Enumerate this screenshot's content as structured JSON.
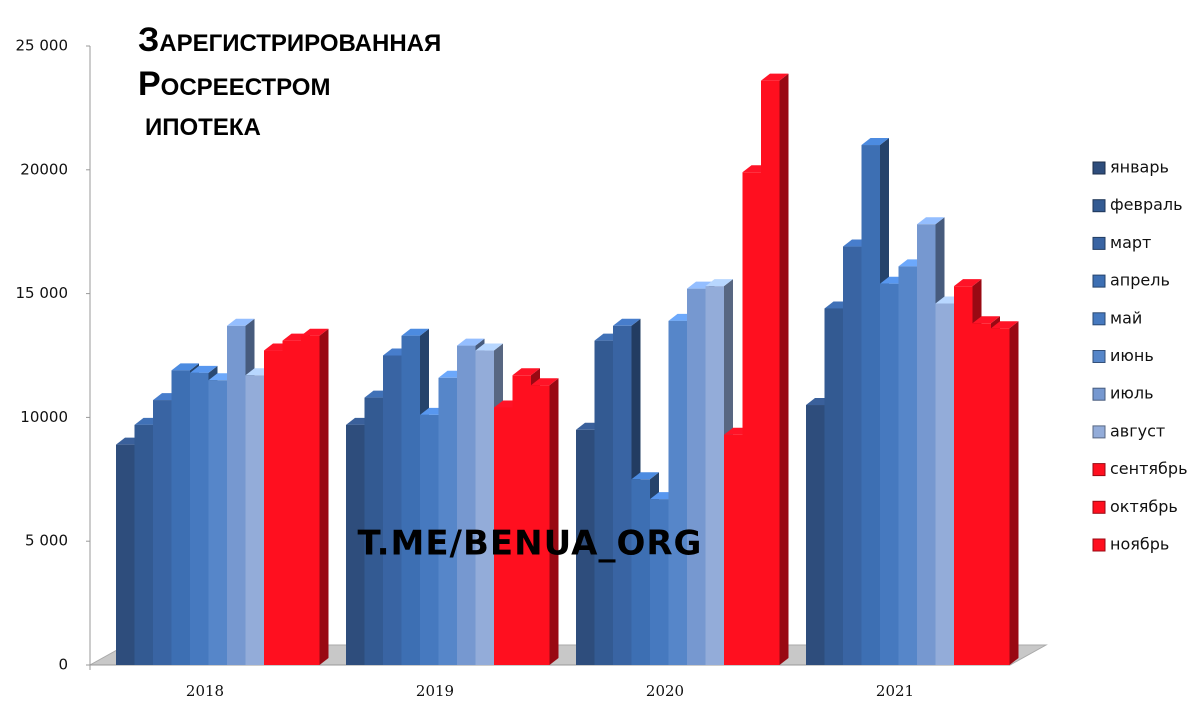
{
  "chart_data": {
    "type": "bar3d",
    "title": [
      "Зарегистрированная",
      "Росреестром",
      "ипотека"
    ],
    "annotation": "T.ME/BENUA_ORG",
    "categories": [
      "2018",
      "2019",
      "2020",
      "2021"
    ],
    "series": [
      {
        "name": "январь",
        "color": "#2e4d7c",
        "values": [
          8900,
          9700,
          9500,
          10500
        ]
      },
      {
        "name": "февраль",
        "color": "#335a92",
        "values": [
          9700,
          10800,
          13100,
          14400
        ]
      },
      {
        "name": "март",
        "color": "#3964a3",
        "values": [
          10700,
          12500,
          13700,
          16900
        ]
      },
      {
        "name": "апрель",
        "color": "#3d6fb3",
        "values": [
          11900,
          13300,
          7500,
          21000
        ]
      },
      {
        "name": "май",
        "color": "#4679bf",
        "values": [
          11800,
          10100,
          6700,
          15400
        ]
      },
      {
        "name": "июнь",
        "color": "#5686c9",
        "values": [
          11500,
          11600,
          13900,
          16100
        ]
      },
      {
        "name": "июль",
        "color": "#7698d0",
        "values": [
          13700,
          12900,
          15200,
          17800
        ]
      },
      {
        "name": "август",
        "color": "#93acd9",
        "values": [
          11700,
          12700,
          15300,
          14600
        ]
      },
      {
        "name": "сентябрь",
        "color": "#ff0f1f",
        "values": [
          12700,
          10400,
          9300,
          15300
        ]
      },
      {
        "name": "октябрь",
        "color": "#ff0f1f",
        "values": [
          13100,
          11700,
          19900,
          13800
        ]
      },
      {
        "name": "ноябрь",
        "color": "#ff0f1f",
        "values": [
          13300,
          11300,
          23600,
          13600
        ]
      }
    ],
    "ylim": [
      0,
      25000
    ],
    "yticks": [
      0,
      {
        "value": 5000,
        "label": "5 000"
      },
      10000,
      {
        "value": 15000,
        "label": "15 000"
      },
      20000,
      {
        "value": 25000,
        "label": "25 000"
      }
    ],
    "legend": "right"
  }
}
